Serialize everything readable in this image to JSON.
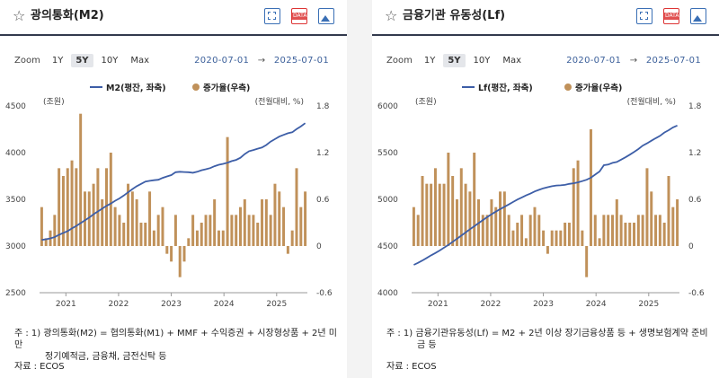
{
  "zoom": {
    "label": "Zoom",
    "buttons": [
      "1Y",
      "5Y",
      "10Y",
      "Max"
    ],
    "active": "5Y"
  },
  "colors": {
    "line": "#3d5ea7",
    "bar": "#c0915a",
    "header_border": "#333a4d",
    "date": "#3b5f9a"
  },
  "icons": [
    "star-icon",
    "expand-icon",
    "data-icon",
    "image-icon"
  ],
  "panels": [
    {
      "title": "광의통화(M2)",
      "date_from": "2020-07-01",
      "date_to": "2025-07-01",
      "arrow": "→",
      "note_line1": "주 : 1) 광의통화(M2) = 협의통화(M1) + MMF + 수익증권 + 시장형상품 + 2년 미만",
      "note_line2": "정기예적금, 금융채, 금전신탁 등",
      "source": "자료 : ECOS",
      "chart_data": {
        "type": "bar+line",
        "x_start": "2020-07",
        "x_end": "2025-07",
        "x_ticks": [
          "2021",
          "2022",
          "2023",
          "2024",
          "2025"
        ],
        "left_axis_label": "(조원)",
        "right_axis_label": "(전월대비, %)",
        "left_ticks": [
          2500,
          3000,
          3500,
          4000,
          4500
        ],
        "right_ticks": [
          -0.6,
          0,
          0.6,
          1.2,
          1.8
        ],
        "left_lim": [
          2500,
          4500
        ],
        "right_lim": [
          -0.6,
          1.8
        ],
        "legend": [
          {
            "name": "M2(평잔, 좌축)",
            "kind": "line"
          },
          {
            "name": "증가율(우측)",
            "kind": "bar"
          }
        ],
        "series": [
          {
            "name": "M2(평잔, 좌축)",
            "axis": "left",
            "values": [
              3065,
              3072,
              3082,
              3095,
              3120,
              3140,
              3160,
              3188,
              3215,
              3245,
              3275,
              3305,
              3340,
              3370,
              3400,
              3430,
              3455,
              3485,
              3510,
              3540,
              3575,
              3610,
              3640,
              3665,
              3690,
              3698,
              3705,
              3710,
              3730,
              3745,
              3760,
              3790,
              3795,
              3792,
              3790,
              3785,
              3795,
              3812,
              3822,
              3835,
              3855,
              3870,
              3880,
              3892,
              3910,
              3922,
              3945,
              3985,
              4015,
              4028,
              4042,
              4055,
              4082,
              4118,
              4145,
              4172,
              4190,
              4208,
              4218,
              4252,
              4282,
              4315
            ]
          },
          {
            "name": "증가율(우측)",
            "axis": "right",
            "values": [
              0.5,
              0.1,
              0.2,
              0.4,
              1.0,
              0.9,
              1.0,
              1.1,
              1.0,
              1.7,
              0.7,
              0.7,
              0.8,
              1.0,
              0.6,
              1.0,
              1.2,
              0.5,
              0.4,
              0.3,
              0.8,
              0.7,
              0.6,
              0.3,
              0.3,
              0.7,
              0.2,
              0.4,
              0.5,
              -0.1,
              -0.2,
              0.4,
              -0.4,
              -0.2,
              0.1,
              0.4,
              0.2,
              0.3,
              0.4,
              0.4,
              0.6,
              0.2,
              0.2,
              1.4,
              0.4,
              0.4,
              0.5,
              0.6,
              0.4,
              0.4,
              0.3,
              0.6,
              0.6,
              0.4,
              0.8,
              0.7,
              0.5,
              -0.1,
              0.2,
              1.0,
              0.5,
              0.7
            ]
          }
        ]
      }
    },
    {
      "title": "금융기관 유동성(Lf)",
      "date_from": "2020-07-01",
      "date_to": "2025-07-01",
      "arrow": "→",
      "note_line1": "주 : 1) 금융기관유동성(Lf) = M2 + 2년 이상 장기금융상품 등 + 생명보험계약 준비",
      "note_line2": "금 등",
      "source": "자료 : ECOS",
      "chart_data": {
        "type": "bar+line",
        "x_start": "2020-07",
        "x_end": "2025-07",
        "x_ticks": [
          "2021",
          "2022",
          "2023",
          "2024",
          "2025"
        ],
        "left_axis_label": "(조원)",
        "right_axis_label": "(전월대비, %)",
        "left_ticks": [
          4000,
          4500,
          5000,
          5500,
          6000
        ],
        "right_ticks": [
          -0.6,
          0,
          0.6,
          1.2,
          1.8
        ],
        "left_lim": [
          4000,
          6000
        ],
        "right_lim": [
          -0.6,
          1.8
        ],
        "legend": [
          {
            "name": "Lf(평잔, 좌축)",
            "kind": "line"
          },
          {
            "name": "증가율(우측)",
            "kind": "bar"
          }
        ],
        "series": [
          {
            "name": "Lf(평잔, 좌축)",
            "axis": "left",
            "values": [
              4298,
              4320,
              4345,
              4372,
              4400,
              4425,
              4452,
              4482,
              4512,
              4545,
              4578,
              4612,
              4645,
              4680,
              4712,
              4745,
              4778,
              4810,
              4840,
              4868,
              4895,
              4920,
              4945,
              4972,
              4998,
              5020,
              5042,
              5062,
              5085,
              5102,
              5118,
              5130,
              5140,
              5148,
              5150,
              5155,
              5165,
              5172,
              5182,
              5195,
              5210,
              5232,
              5265,
              5298,
              5365,
              5372,
              5390,
              5400,
              5425,
              5450,
              5478,
              5508,
              5538,
              5575,
              5600,
              5628,
              5655,
              5680,
              5715,
              5740,
              5770,
              5790
            ]
          },
          {
            "name": "증가율(우측)",
            "axis": "right",
            "values": [
              0.5,
              0.4,
              0.9,
              0.8,
              0.8,
              1.0,
              0.8,
              0.8,
              1.2,
              0.9,
              0.6,
              1.0,
              0.8,
              0.7,
              1.2,
              0.6,
              0.4,
              0.4,
              0.6,
              0.5,
              0.7,
              0.7,
              0.4,
              0.2,
              0.3,
              0.4,
              0.1,
              0.4,
              0.5,
              0.4,
              0.2,
              -0.1,
              0.2,
              0.2,
              0.2,
              0.3,
              0.3,
              1.0,
              1.1,
              0.2,
              -0.4,
              1.5,
              0.4,
              0.1,
              0.4,
              0.4,
              0.4,
              0.6,
              0.4,
              0.3,
              0.3,
              0.3,
              0.4,
              0.4,
              1.0,
              0.7,
              0.4,
              0.4,
              0.3,
              0.9,
              0.5,
              0.6
            ]
          }
        ]
      }
    }
  ]
}
